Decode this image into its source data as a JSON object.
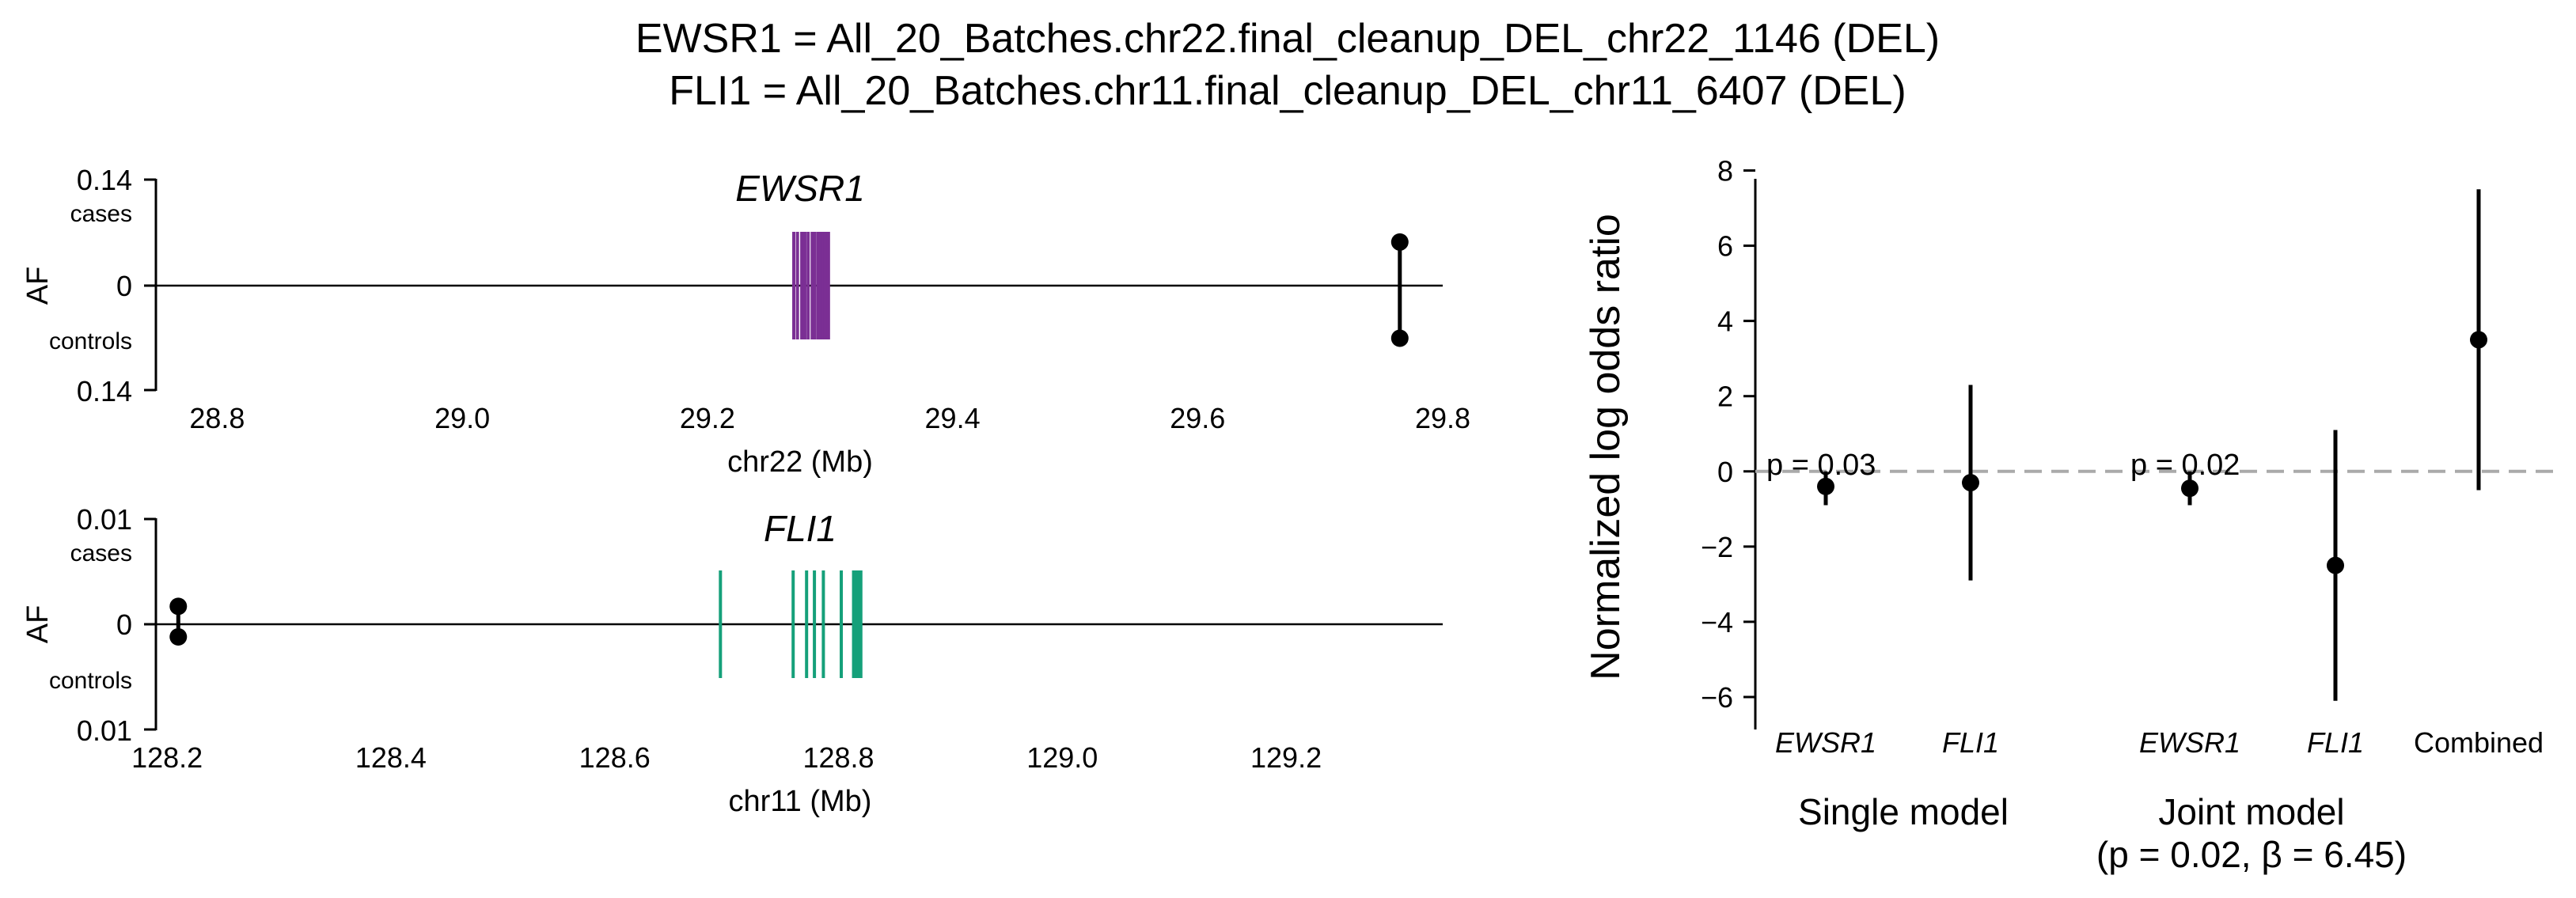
{
  "title_lines": [
    "EWSR1 = All_20_Batches.chr22.final_cleanup_DEL_chr22_1146 (DEL)",
    "FLI1 = All_20_Batches.chr11.final_cleanup_DEL_chr11_6407 (DEL)"
  ],
  "colors": {
    "ewsr1": "#7b2f94",
    "fli1": "#15a07a",
    "zero_line": "#aaaaaa"
  },
  "chart_data": [
    {
      "type": "lollipop",
      "gene": "EWSR1",
      "xlabel": "chr22 (Mb)",
      "ylabel": "AF",
      "x_range": [
        28.75,
        29.8
      ],
      "x_ticks": [
        "28.8",
        "29.0",
        "29.2",
        "29.4",
        "29.6",
        "29.8"
      ],
      "y_top_label": "0.14",
      "y_top_sub": "cases",
      "y_zero_label": "0",
      "y_bottom_sub": "controls",
      "y_bottom_label": "0.14",
      "y_max": 0.14,
      "variant": {
        "pos": 29.765,
        "cases_af": 0.058,
        "controls_af": 0.07
      },
      "exons": [
        29.2705,
        29.2735,
        29.277,
        29.2795,
        29.2822,
        29.2855,
        29.2878,
        29.2905,
        29.2918,
        29.2935,
        29.295,
        29.2962,
        29.2975,
        29.2988
      ]
    },
    {
      "type": "lollipop",
      "gene": "FLI1",
      "xlabel": "chr11 (Mb)",
      "ylabel": "AF",
      "x_range": [
        128.19,
        129.34
      ],
      "x_ticks": [
        "128.2",
        "128.4",
        "128.6",
        "128.8",
        "129.0",
        "129.2"
      ],
      "y_top_label": "0.01",
      "y_top_sub": "cases",
      "y_zero_label": "0",
      "y_bottom_sub": "controls",
      "y_bottom_label": "0.01",
      "y_max": 0.01,
      "variant": {
        "pos": 128.21,
        "cases_af": 0.0017,
        "controls_af": 0.0012
      },
      "exons": [
        128.6945,
        128.7595,
        128.7715,
        128.7785,
        128.7865,
        128.8025,
        128.8135,
        128.816,
        128.818,
        128.82
      ]
    },
    {
      "type": "scatter",
      "ylabel": "Normalized log odds ratio",
      "y_range": [
        -6.8,
        8.2
      ],
      "y_ticks": [
        "8",
        "6",
        "4",
        "2",
        "0",
        "−2",
        "−4",
        "−6"
      ],
      "points": [
        {
          "label": "EWSR1",
          "italic": true,
          "value": -0.4,
          "low": -0.9,
          "high": 0.0
        },
        {
          "label": "FLI1",
          "italic": true,
          "value": -0.3,
          "low": -2.9,
          "high": 2.3
        },
        {
          "label": "EWSR1",
          "italic": true,
          "value": -0.45,
          "low": -0.9,
          "high": 0.0
        },
        {
          "label": "FLI1",
          "italic": true,
          "value": -2.5,
          "low": -6.1,
          "high": 1.1
        },
        {
          "label": "Combined",
          "italic": false,
          "value": 3.5,
          "low": -0.5,
          "high": 7.5
        }
      ],
      "annotations": [
        "p = 0.03",
        "p = 0.02"
      ],
      "groups": {
        "single": "Single model",
        "joint_line1": "Joint model",
        "joint_line2": "(p = 0.02, β = 6.45)"
      }
    }
  ]
}
